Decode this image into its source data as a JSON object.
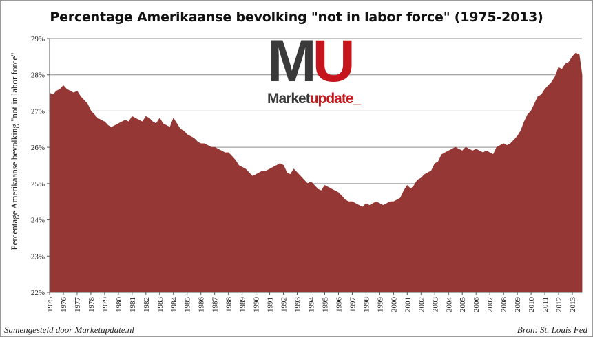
{
  "chart_data": {
    "type": "area",
    "title": "Percentage Amerikaanse bevolking \"not in labor force\" (1975-2013)",
    "ylabel": "Percentage Amerikaanse bevolking \"not in labor force\"",
    "xlabel": "",
    "ylim": [
      22,
      29
    ],
    "y_ticks": [
      "22%",
      "23%",
      "24%",
      "25%",
      "26%",
      "27%",
      "28%",
      "29%"
    ],
    "x_ticks": [
      "1975",
      "1976",
      "1977",
      "1978",
      "1979",
      "1980",
      "1981",
      "1982",
      "1983",
      "1984",
      "1985",
      "1986",
      "1987",
      "1988",
      "1989",
      "1990",
      "1991",
      "1992",
      "1993",
      "1994",
      "1995",
      "1996",
      "1997",
      "1998",
      "1999",
      "2000",
      "2001",
      "2002",
      "2003",
      "2004",
      "2005",
      "2006",
      "2007",
      "2008",
      "2009",
      "2010",
      "2011",
      "2012",
      "2013"
    ],
    "xlim": [
      1975,
      2013.7
    ],
    "grid": true,
    "series": [
      {
        "color": "#953735",
        "x": [
          1975.0,
          1975.25,
          1975.5,
          1975.75,
          1976.0,
          1976.25,
          1976.5,
          1976.75,
          1977.0,
          1977.25,
          1977.5,
          1977.75,
          1978.0,
          1978.25,
          1978.5,
          1978.75,
          1979.0,
          1979.25,
          1979.5,
          1979.75,
          1980.0,
          1980.25,
          1980.5,
          1980.75,
          1981.0,
          1981.25,
          1981.5,
          1981.75,
          1982.0,
          1982.25,
          1982.5,
          1982.75,
          1983.0,
          1983.25,
          1983.5,
          1983.75,
          1984.0,
          1984.25,
          1984.5,
          1984.75,
          1985.0,
          1985.25,
          1985.5,
          1985.75,
          1986.0,
          1986.25,
          1986.5,
          1986.75,
          1987.0,
          1987.25,
          1987.5,
          1987.75,
          1988.0,
          1988.25,
          1988.5,
          1988.75,
          1989.0,
          1989.25,
          1989.5,
          1989.75,
          1990.0,
          1990.25,
          1990.5,
          1990.75,
          1991.0,
          1991.25,
          1991.5,
          1991.75,
          1992.0,
          1992.25,
          1992.5,
          1992.75,
          1993.0,
          1993.25,
          1993.5,
          1993.75,
          1994.0,
          1994.25,
          1994.5,
          1994.75,
          1995.0,
          1995.25,
          1995.5,
          1995.75,
          1996.0,
          1996.25,
          1996.5,
          1996.75,
          1997.0,
          1997.25,
          1997.5,
          1997.75,
          1998.0,
          1998.25,
          1998.5,
          1998.75,
          1999.0,
          1999.25,
          1999.5,
          1999.75,
          2000.0,
          2000.25,
          2000.5,
          2000.75,
          2001.0,
          2001.25,
          2001.5,
          2001.75,
          2002.0,
          2002.25,
          2002.5,
          2002.75,
          2003.0,
          2003.25,
          2003.5,
          2003.75,
          2004.0,
          2004.25,
          2004.5,
          2004.75,
          2005.0,
          2005.25,
          2005.5,
          2005.75,
          2006.0,
          2006.25,
          2006.5,
          2006.75,
          2007.0,
          2007.25,
          2007.5,
          2007.75,
          2008.0,
          2008.25,
          2008.5,
          2008.75,
          2009.0,
          2009.25,
          2009.5,
          2009.75,
          2010.0,
          2010.25,
          2010.5,
          2010.75,
          2011.0,
          2011.25,
          2011.5,
          2011.75,
          2012.0,
          2012.25,
          2012.5,
          2012.75,
          2013.0,
          2013.25,
          2013.5,
          2013.7
        ],
        "values": [
          27.5,
          27.45,
          27.55,
          27.6,
          27.7,
          27.6,
          27.55,
          27.5,
          27.55,
          27.4,
          27.3,
          27.2,
          27.0,
          26.9,
          26.8,
          26.75,
          26.7,
          26.6,
          26.55,
          26.6,
          26.65,
          26.7,
          26.75,
          26.7,
          26.85,
          26.8,
          26.75,
          26.7,
          26.85,
          26.8,
          26.7,
          26.65,
          26.8,
          26.65,
          26.6,
          26.55,
          26.8,
          26.65,
          26.5,
          26.45,
          26.35,
          26.3,
          26.25,
          26.15,
          26.1,
          26.1,
          26.05,
          26.0,
          26.0,
          25.95,
          25.9,
          25.85,
          25.85,
          25.75,
          25.65,
          25.5,
          25.45,
          25.4,
          25.3,
          25.2,
          25.25,
          25.3,
          25.35,
          25.35,
          25.4,
          25.45,
          25.5,
          25.55,
          25.5,
          25.3,
          25.25,
          25.4,
          25.3,
          25.2,
          25.1,
          25.0,
          25.05,
          24.95,
          24.85,
          24.8,
          24.95,
          24.9,
          24.85,
          24.8,
          24.75,
          24.65,
          24.55,
          24.5,
          24.5,
          24.45,
          24.4,
          24.35,
          24.45,
          24.4,
          24.45,
          24.5,
          24.45,
          24.4,
          24.45,
          24.5,
          24.5,
          24.55,
          24.6,
          24.8,
          24.95,
          24.85,
          24.95,
          25.1,
          25.15,
          25.25,
          25.3,
          25.35,
          25.55,
          25.6,
          25.8,
          25.85,
          25.9,
          25.95,
          26.0,
          25.95,
          25.9,
          26.0,
          25.95,
          25.9,
          25.95,
          25.9,
          25.85,
          25.9,
          25.85,
          25.8,
          26.0,
          26.05,
          26.1,
          26.05,
          26.1,
          26.2,
          26.3,
          26.45,
          26.7,
          26.9,
          27.0,
          27.2,
          27.4,
          27.45,
          27.6,
          27.7,
          27.8,
          27.95,
          28.2,
          28.15,
          28.3,
          28.35,
          28.5,
          28.6,
          28.55,
          28.0
        ]
      }
    ]
  },
  "logo": {
    "letter_m": "M",
    "letter_u": "U",
    "word_market": "Market",
    "word_update": "update_"
  },
  "footer": {
    "left": "Samengesteld door Marketupdate.nl",
    "right": "Bron: St. Louis Fed"
  }
}
